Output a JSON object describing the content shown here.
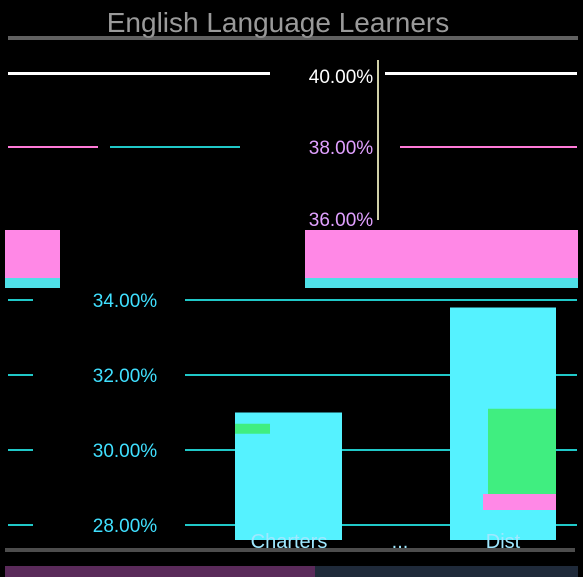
{
  "chart_data": {
    "type": "bar",
    "title": "English Language Learners",
    "categories": [
      "Charters",
      "Dist"
    ],
    "category_label_partial": "...",
    "series": [
      {
        "values": [
          31.0,
          33.8
        ]
      },
      {
        "values": [
          30.7,
          31.1
        ]
      }
    ],
    "upper_ticks": [
      "40.00%",
      "38.00%",
      "36.00%"
    ],
    "lower_ticks": [
      "34.00%",
      "32.00%",
      "30.00%",
      "28.00%"
    ],
    "ylim": [
      27.6,
      34.8
    ],
    "grid": true,
    "colors": {
      "background": "#000000",
      "title": "#9a9a9a",
      "upper_tick": "#e0a0ff",
      "lower_tick": "#40e0ff",
      "grid_lower": "#20c8c8",
      "grid_upper": "#ff7ad8",
      "bar_primary": "#55f2ff",
      "bar_secondary": "#40ee80",
      "band": "#ff88e6",
      "band_strip": "#4fe0e8"
    }
  }
}
